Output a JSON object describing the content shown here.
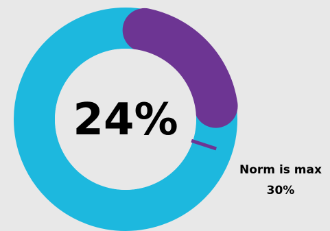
{
  "chart_data": {
    "type": "donut",
    "value_label": "24%",
    "value": 24,
    "norm_label_line1": "Norm is max",
    "norm_label_line2": "30%",
    "norm_value": 30,
    "colors": {
      "ring": "#1db8de",
      "value_arc": "#6d3593",
      "norm_marker": "#6d3593",
      "hole": "#e8e8e8",
      "background": "#e8e8e8"
    }
  }
}
